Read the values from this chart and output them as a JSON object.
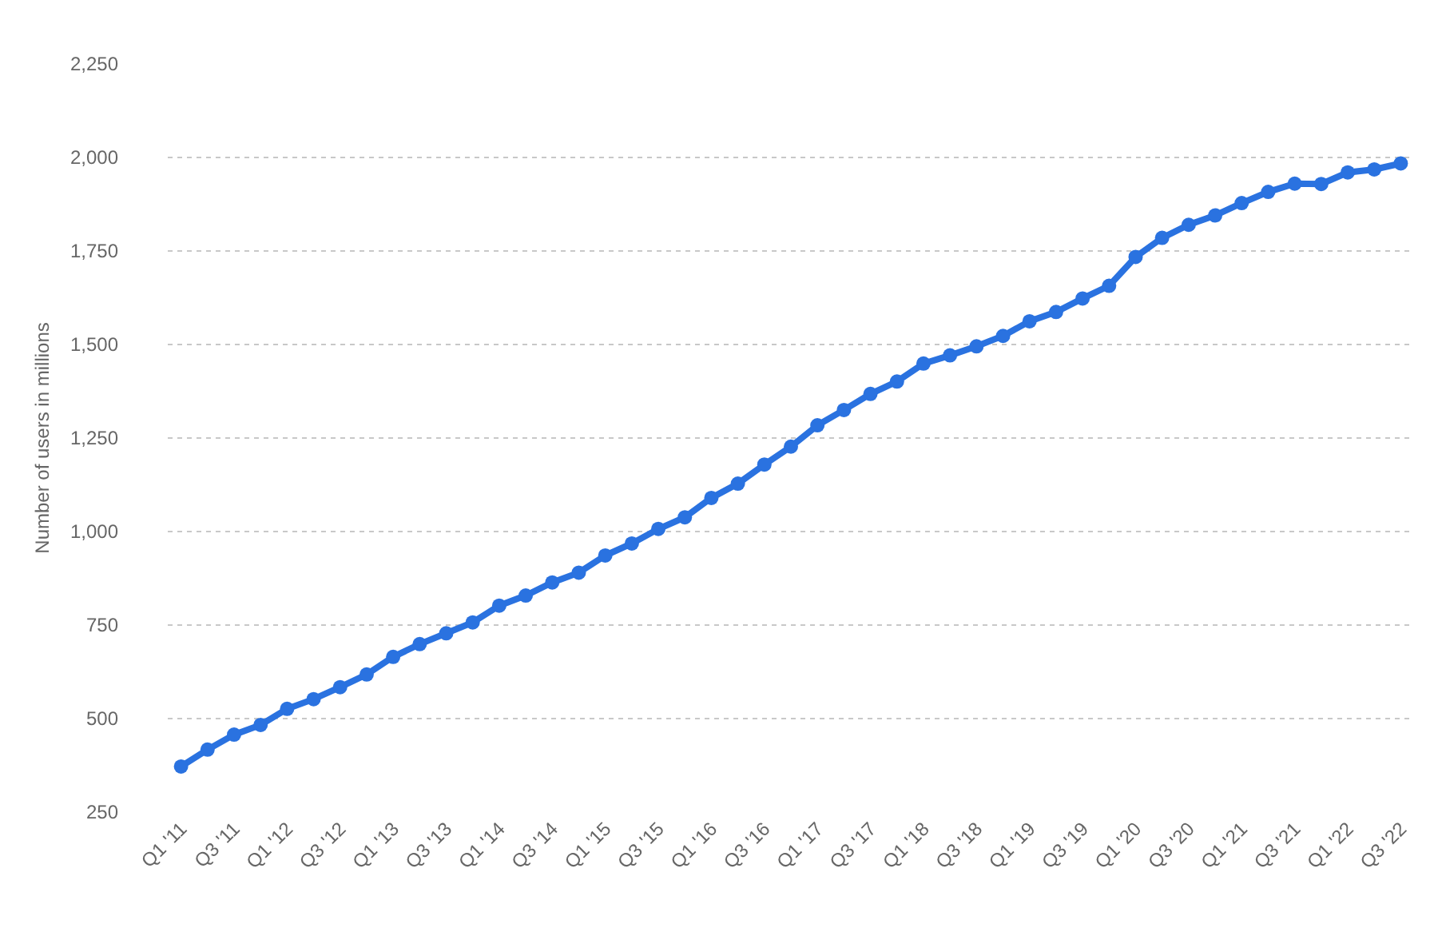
{
  "chart_data": {
    "type": "line",
    "ylabel": "Number of users in millions",
    "categories": [
      "Q1 '11",
      null,
      "Q3 '11",
      null,
      "Q1 '12",
      null,
      "Q3 '12",
      null,
      "Q1 '13",
      null,
      "Q3 '13",
      null,
      "Q1 '14",
      null,
      "Q3 '14",
      null,
      "Q1 '15",
      null,
      "Q3 '15",
      null,
      "Q1 '16",
      null,
      "Q3 '16",
      null,
      "Q1 '17",
      null,
      "Q3 '17",
      null,
      "Q1 '18",
      null,
      "Q3 '18",
      null,
      "Q1 '19",
      null,
      "Q3 '19",
      null,
      "Q1 '20",
      null,
      "Q3 '20",
      null,
      "Q1 '21",
      null,
      "Q3 '21",
      null,
      "Q1 '22",
      null,
      "Q3 '22"
    ],
    "series": [
      {
        "color": "#2a72e0",
        "values": [
          372,
          417,
          457,
          483,
          526,
          552,
          584,
          618,
          665,
          699,
          728,
          757,
          802,
          829,
          864,
          890,
          936,
          968,
          1007,
          1038,
          1090,
          1128,
          1179,
          1227,
          1284,
          1325,
          1368,
          1401,
          1449,
          1471,
          1495,
          1523,
          1562,
          1587,
          1623,
          1657,
          1734,
          1785,
          1820,
          1845,
          1878,
          1908,
          1930,
          1929,
          1960,
          1968,
          1984
        ]
      }
    ],
    "ylim": [
      250,
      2250
    ],
    "yticks": [
      {
        "value": 250,
        "label": "250"
      },
      {
        "value": 500,
        "label": "500"
      },
      {
        "value": 750,
        "label": "750"
      },
      {
        "value": 1000,
        "label": "1,000"
      },
      {
        "value": 1250,
        "label": "1,250"
      },
      {
        "value": 1500,
        "label": "1,500"
      },
      {
        "value": 1750,
        "label": "1,750"
      },
      {
        "value": 2000,
        "label": "2,000"
      },
      {
        "value": 2250,
        "label": "2,250"
      }
    ],
    "grid": "y",
    "marker": "circle",
    "line_style": "solid",
    "legend": false
  }
}
